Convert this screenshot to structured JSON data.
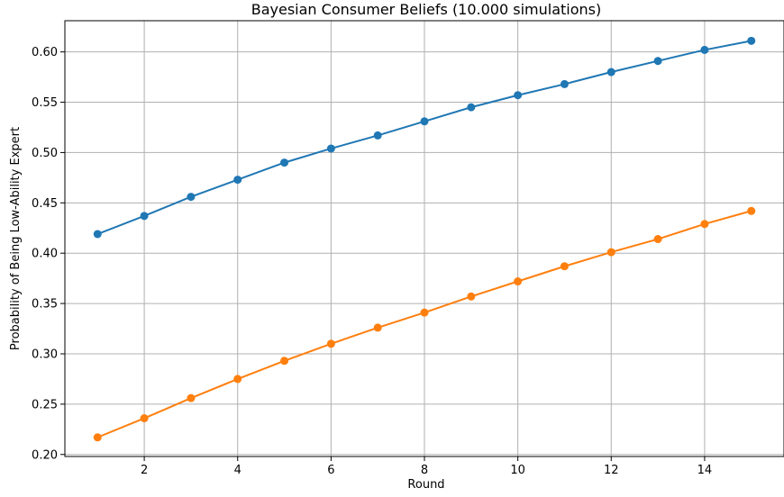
{
  "chart_data": {
    "type": "line",
    "title": "Bayesian Consumer Beliefs (10.000 simulations)",
    "xlabel": "Round",
    "ylabel": "Probability of Being Low-Ability Expert",
    "x": [
      1,
      2,
      3,
      4,
      5,
      6,
      7,
      8,
      9,
      10,
      11,
      12,
      13,
      14,
      15
    ],
    "xlim": [
      0.3,
      15.7
    ],
    "ylim": [
      0.198,
      0.631
    ],
    "xticks": [
      2,
      4,
      6,
      8,
      10,
      12,
      14
    ],
    "yticks": [
      0.2,
      0.25,
      0.3,
      0.35,
      0.4,
      0.45,
      0.5,
      0.55,
      0.6
    ],
    "grid": true,
    "legend": "none",
    "series": [
      {
        "color": "#1f77b4",
        "values": [
          0.419,
          0.437,
          0.456,
          0.473,
          0.49,
          0.504,
          0.517,
          0.531,
          0.545,
          0.557,
          0.568,
          0.58,
          0.591,
          0.602,
          0.611
        ]
      },
      {
        "color": "#ff7f0e",
        "values": [
          0.217,
          0.236,
          0.256,
          0.275,
          0.293,
          0.31,
          0.326,
          0.341,
          0.357,
          0.372,
          0.387,
          0.401,
          0.414,
          0.429,
          0.442
        ]
      }
    ]
  }
}
